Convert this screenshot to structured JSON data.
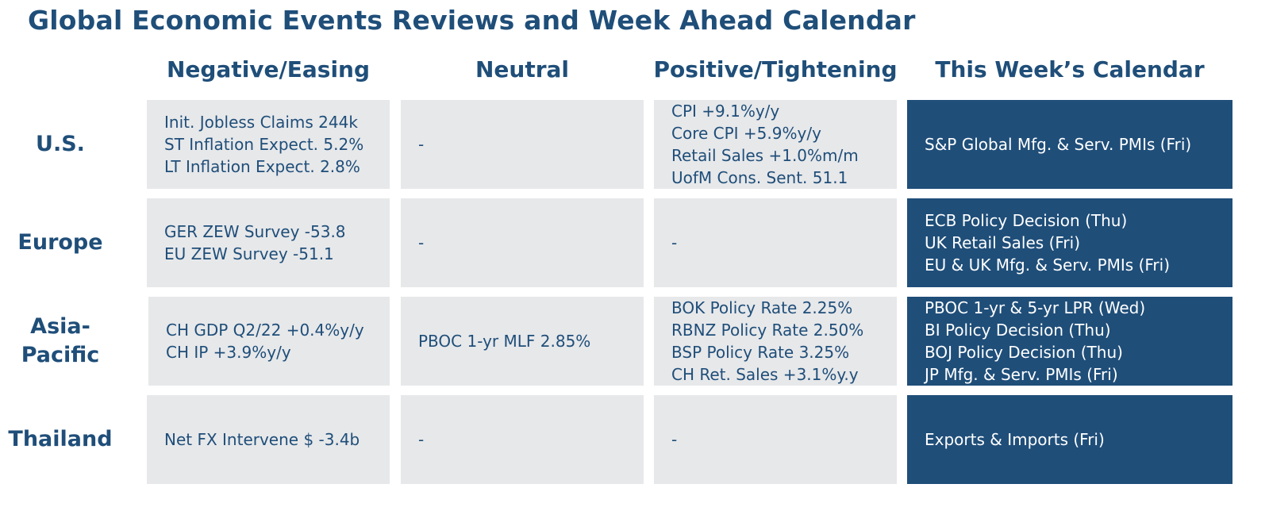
{
  "title": "Global Economic Events Reviews and Week Ahead Calendar",
  "columns": [
    "Negative/Easing",
    "Neutral",
    "Positive/Tightening",
    "This Week’s Calendar"
  ],
  "colors": {
    "heading": "#1f4e79",
    "cell_grey": "#e7e8ea",
    "calendar_blue": "#1f4e79",
    "calendar_text": "#ffffff"
  },
  "rows": [
    {
      "label": "U.S.",
      "negative": [
        "Init. Jobless Claims 244k",
        "ST Inflation Expect. 5.2%",
        "LT Inflation Expect. 2.8%"
      ],
      "neutral": [
        "-"
      ],
      "positive": [
        "CPI +9.1%y/y",
        "Core CPI +5.9%y/y",
        "Retail Sales +1.0%m/m",
        "UofM Cons. Sent. 51.1"
      ],
      "calendar": [
        "S&P Global Mfg. & Serv. PMIs (Fri)"
      ]
    },
    {
      "label": "Europe",
      "negative": [
        "GER ZEW Survey -53.8",
        "EU ZEW Survey -51.1"
      ],
      "neutral": [
        "-"
      ],
      "positive": [
        "-"
      ],
      "calendar": [
        "ECB Policy Decision (Thu)",
        "UK Retail Sales (Fri)",
        "EU & UK Mfg. & Serv. PMIs (Fri)"
      ]
    },
    {
      "label": "Asia-\nPacific",
      "negative": [
        "CH GDP Q2/22 +0.4%y/y",
        "CH IP +3.9%y/y"
      ],
      "neutral": [
        "PBOC 1-yr MLF 2.85%"
      ],
      "positive": [
        "BOK Policy Rate 2.25%",
        "RBNZ Policy Rate 2.50%",
        "BSP Policy Rate 3.25%",
        "CH Ret. Sales +3.1%y.y"
      ],
      "calendar": [
        "PBOC 1-yr & 5-yr LPR (Wed)",
        "BI Policy Decision (Thu)",
        "BOJ Policy Decision (Thu)",
        "JP Mfg. & Serv. PMIs (Fri)"
      ]
    },
    {
      "label": "Thailand",
      "negative": [
        "Net FX Intervene $ -3.4b"
      ],
      "neutral": [
        "-"
      ],
      "positive": [
        "-"
      ],
      "calendar": [
        "Exports & Imports (Fri)"
      ]
    }
  ]
}
